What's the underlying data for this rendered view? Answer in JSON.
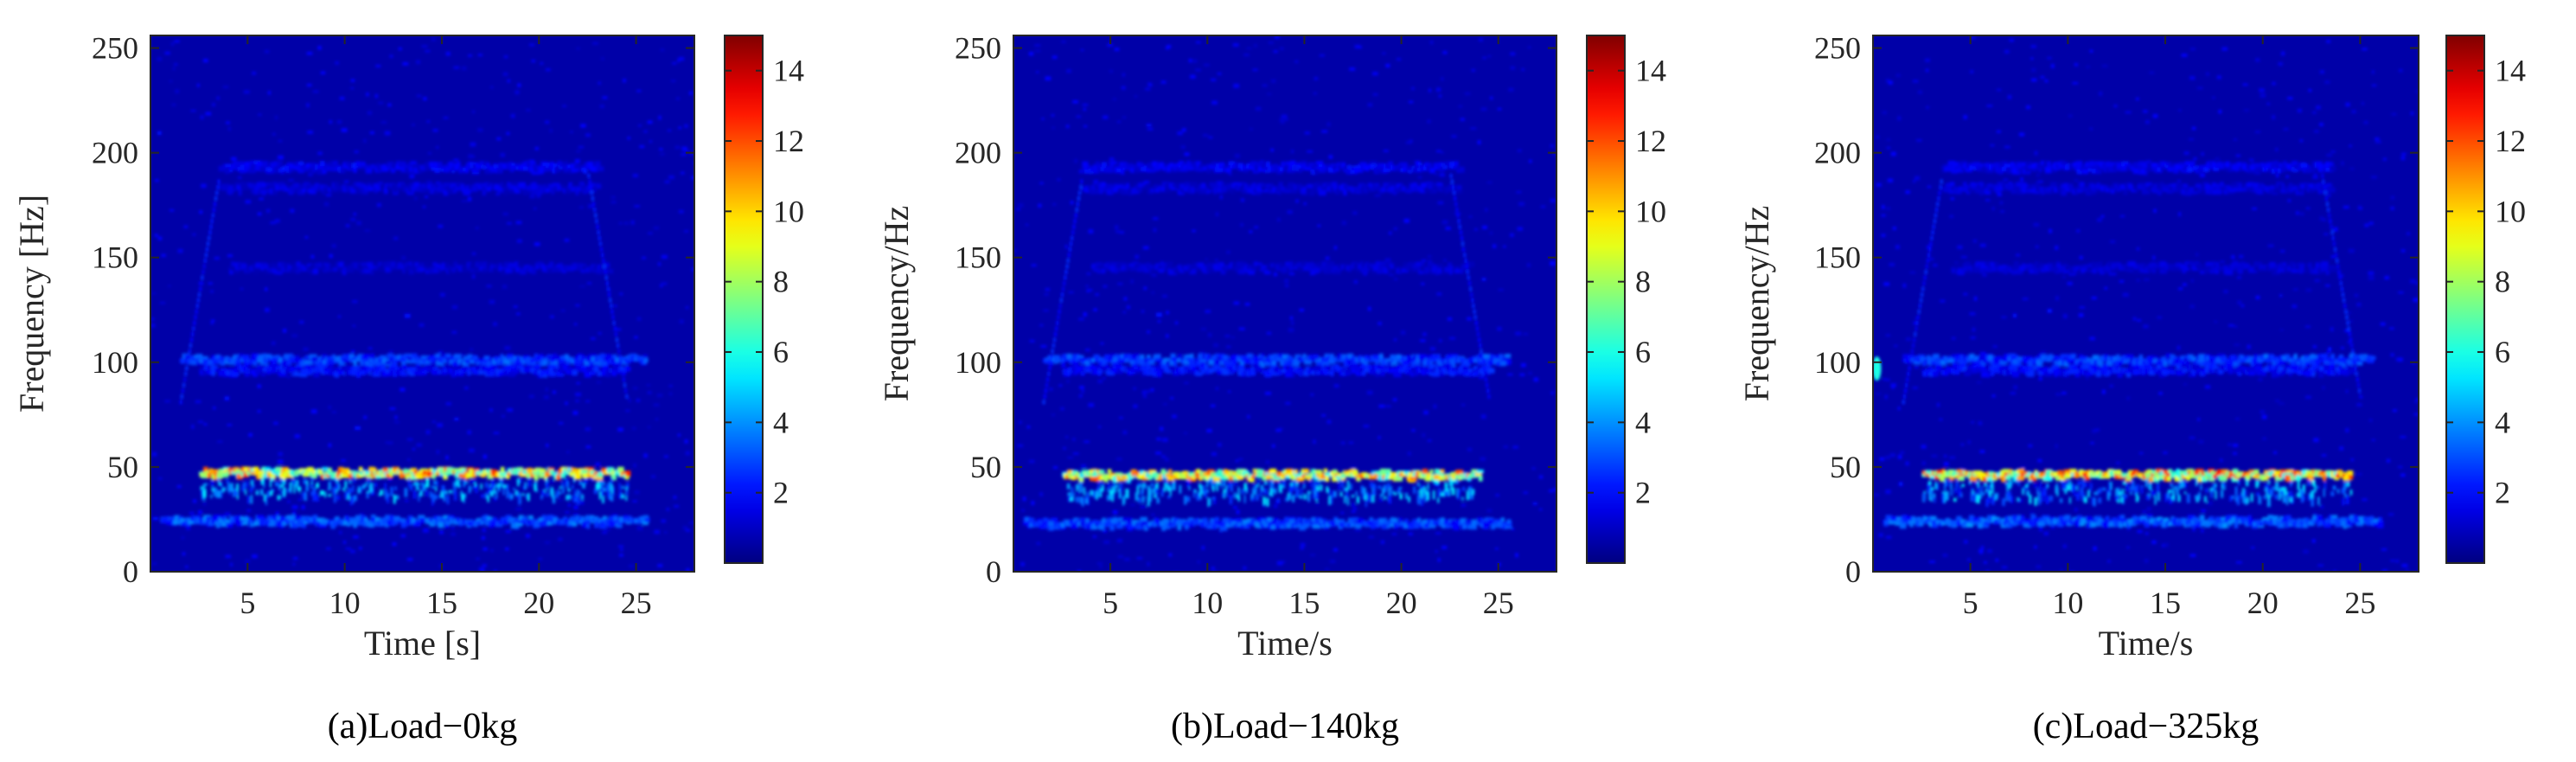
{
  "chart_data": [
    {
      "type": "heatmap",
      "caption": "(a)Load−0kg",
      "xlabel": "Time [s]",
      "ylabel": "Frequency [Hz]",
      "xlim": [
        0,
        28
      ],
      "ylim": [
        0,
        256
      ],
      "xticks": [
        5,
        10,
        15,
        20,
        25
      ],
      "yticks": [
        0,
        50,
        100,
        150,
        200,
        250
      ],
      "colorbar": {
        "range": [
          0,
          15
        ],
        "ticks": [
          2,
          4,
          6,
          8,
          10,
          12,
          14
        ],
        "colormap": "jet"
      },
      "background_level": 0.6,
      "features": [
        {
          "kind": "hband",
          "freq": 47,
          "t0": 2.5,
          "t1": 24.5,
          "level": 11.5
        },
        {
          "kind": "hband",
          "freq": 24,
          "t0": 0.5,
          "t1": 25.5,
          "level": 3.6
        },
        {
          "kind": "hband",
          "freq": 101,
          "t0": 1.5,
          "t1": 25.5,
          "level": 3.2
        },
        {
          "kind": "hband",
          "freq": 96,
          "t0": 2.5,
          "t1": 24.5,
          "level": 2.4
        },
        {
          "kind": "hband",
          "freq": 193,
          "t0": 3.5,
          "t1": 23.0,
          "level": 2.0
        },
        {
          "kind": "hband",
          "freq": 183,
          "t0": 3.5,
          "t1": 23.0,
          "level": 1.6
        },
        {
          "kind": "hband",
          "freq": 145,
          "t0": 4.0,
          "t1": 23.5,
          "level": 1.5
        },
        {
          "kind": "ramp",
          "t0": 1.5,
          "f0": 82,
          "t1": 3.5,
          "f1": 190,
          "level": 2.2
        },
        {
          "kind": "ramp",
          "t0": 22.5,
          "f0": 190,
          "t1": 24.5,
          "f1": 82,
          "level": 2.2
        }
      ]
    },
    {
      "type": "heatmap",
      "caption": "(b)Load−140kg",
      "xlabel": "Time/s",
      "ylabel": "Frequency/Hz",
      "xlim": [
        0,
        28
      ],
      "ylim": [
        0,
        256
      ],
      "xticks": [
        5,
        10,
        15,
        20,
        25
      ],
      "yticks": [
        0,
        50,
        100,
        150,
        200,
        250
      ],
      "colorbar": {
        "range": [
          0,
          15
        ],
        "ticks": [
          2,
          4,
          6,
          8,
          10,
          12,
          14
        ],
        "colormap": "jet"
      },
      "background_level": 0.6,
      "features": [
        {
          "kind": "hband",
          "freq": 46,
          "t0": 2.5,
          "t1": 24.0,
          "level": 11.0
        },
        {
          "kind": "hband",
          "freq": 23,
          "t0": 0.5,
          "t1": 25.5,
          "level": 3.4
        },
        {
          "kind": "hband",
          "freq": 101,
          "t0": 1.5,
          "t1": 25.5,
          "level": 3.2
        },
        {
          "kind": "hband",
          "freq": 96,
          "t0": 2.5,
          "t1": 24.5,
          "level": 2.4
        },
        {
          "kind": "hband",
          "freq": 193,
          "t0": 3.5,
          "t1": 23.0,
          "level": 2.0
        },
        {
          "kind": "hband",
          "freq": 183,
          "t0": 3.5,
          "t1": 23.0,
          "level": 1.6
        },
        {
          "kind": "hband",
          "freq": 145,
          "t0": 4.0,
          "t1": 23.5,
          "level": 1.5
        },
        {
          "kind": "ramp",
          "t0": 1.5,
          "f0": 82,
          "t1": 3.5,
          "f1": 190,
          "level": 2.2
        },
        {
          "kind": "ramp",
          "t0": 22.5,
          "f0": 190,
          "t1": 24.5,
          "f1": 82,
          "level": 2.2
        }
      ]
    },
    {
      "type": "heatmap",
      "caption": "(c)Load−325kg",
      "xlabel": "Time/s",
      "ylabel": "Frequency/Hz",
      "xlim": [
        0,
        28
      ],
      "ylim": [
        0,
        256
      ],
      "xticks": [
        5,
        10,
        15,
        20,
        25
      ],
      "yticks": [
        0,
        50,
        100,
        150,
        200,
        250
      ],
      "colorbar": {
        "range": [
          0,
          15
        ],
        "ticks": [
          2,
          4,
          6,
          8,
          10,
          12,
          14
        ],
        "colormap": "jet"
      },
      "background_level": 0.6,
      "features": [
        {
          "kind": "hband",
          "freq": 46,
          "t0": 2.5,
          "t1": 24.5,
          "level": 12.0
        },
        {
          "kind": "hband",
          "freq": 24,
          "t0": 0.5,
          "t1": 26.0,
          "level": 3.8
        },
        {
          "kind": "hband",
          "freq": 101,
          "t0": 1.5,
          "t1": 25.5,
          "level": 3.2
        },
        {
          "kind": "hband",
          "freq": 96,
          "t0": 2.5,
          "t1": 24.5,
          "level": 2.4
        },
        {
          "kind": "hband",
          "freq": 193,
          "t0": 3.5,
          "t1": 23.5,
          "level": 2.0
        },
        {
          "kind": "hband",
          "freq": 183,
          "t0": 3.5,
          "t1": 23.5,
          "level": 1.6
        },
        {
          "kind": "hband",
          "freq": 145,
          "t0": 4.0,
          "t1": 23.5,
          "level": 1.5
        },
        {
          "kind": "ramp",
          "t0": 1.5,
          "f0": 82,
          "t1": 3.5,
          "f1": 190,
          "level": 2.2
        },
        {
          "kind": "ramp",
          "t0": 23.0,
          "f0": 190,
          "t1": 25.0,
          "f1": 82,
          "level": 2.2
        },
        {
          "kind": "spot",
          "t": 0.2,
          "freq": 97,
          "level": 6.0
        }
      ]
    }
  ]
}
